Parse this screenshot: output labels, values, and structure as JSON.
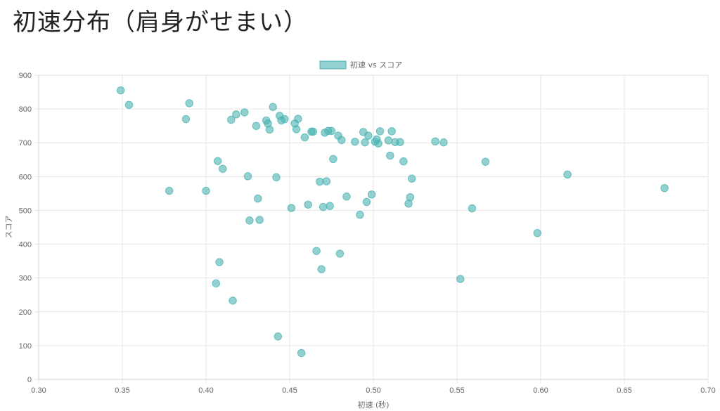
{
  "page": {
    "title": "初速分布（肩身がせまい）"
  },
  "chart_data": {
    "type": "scatter",
    "xlabel": "初速 (秒)",
    "ylabel": "スコア",
    "xlim": [
      0.3,
      0.7
    ],
    "ylim": [
      0,
      900
    ],
    "x_ticks": [
      "0.30",
      "0.35",
      "0.40",
      "0.45",
      "0.50",
      "0.55",
      "0.60",
      "0.65",
      "0.70"
    ],
    "y_ticks": [
      "0",
      "100",
      "200",
      "300",
      "400",
      "500",
      "600",
      "700",
      "800",
      "900"
    ],
    "grid": true,
    "legend_position": "top-center",
    "series": [
      {
        "name": "初速 vs スコア",
        "color": "#4bb3b3",
        "points": [
          [
            0.349,
            855
          ],
          [
            0.354,
            812
          ],
          [
            0.378,
            558
          ],
          [
            0.388,
            770
          ],
          [
            0.39,
            817
          ],
          [
            0.4,
            558
          ],
          [
            0.406,
            284
          ],
          [
            0.407,
            646
          ],
          [
            0.408,
            347
          ],
          [
            0.41,
            623
          ],
          [
            0.415,
            768
          ],
          [
            0.416,
            233
          ],
          [
            0.418,
            784
          ],
          [
            0.423,
            790
          ],
          [
            0.425,
            601
          ],
          [
            0.426,
            470
          ],
          [
            0.43,
            750
          ],
          [
            0.431,
            535
          ],
          [
            0.432,
            472
          ],
          [
            0.436,
            766
          ],
          [
            0.437,
            757
          ],
          [
            0.438,
            739
          ],
          [
            0.44,
            806
          ],
          [
            0.442,
            598
          ],
          [
            0.443,
            127
          ],
          [
            0.444,
            780
          ],
          [
            0.445,
            766
          ],
          [
            0.447,
            770
          ],
          [
            0.451,
            507
          ],
          [
            0.453,
            757
          ],
          [
            0.454,
            740
          ],
          [
            0.455,
            771
          ],
          [
            0.457,
            78
          ],
          [
            0.459,
            716
          ],
          [
            0.461,
            517
          ],
          [
            0.463,
            733
          ],
          [
            0.464,
            733
          ],
          [
            0.466,
            380
          ],
          [
            0.468,
            585
          ],
          [
            0.469,
            326
          ],
          [
            0.47,
            510
          ],
          [
            0.471,
            730
          ],
          [
            0.472,
            586
          ],
          [
            0.473,
            735
          ],
          [
            0.474,
            513
          ],
          [
            0.475,
            735
          ],
          [
            0.476,
            652
          ],
          [
            0.479,
            721
          ],
          [
            0.48,
            372
          ],
          [
            0.481,
            708
          ],
          [
            0.484,
            541
          ],
          [
            0.489,
            703
          ],
          [
            0.492,
            487
          ],
          [
            0.494,
            732
          ],
          [
            0.495,
            701
          ],
          [
            0.496,
            525
          ],
          [
            0.497,
            721
          ],
          [
            0.499,
            547
          ],
          [
            0.501,
            703
          ],
          [
            0.502,
            710
          ],
          [
            0.503,
            698
          ],
          [
            0.504,
            734
          ],
          [
            0.509,
            707
          ],
          [
            0.51,
            662
          ],
          [
            0.511,
            734
          ],
          [
            0.513,
            702
          ],
          [
            0.516,
            702
          ],
          [
            0.518,
            645
          ],
          [
            0.521,
            520
          ],
          [
            0.522,
            539
          ],
          [
            0.523,
            594
          ],
          [
            0.537,
            704
          ],
          [
            0.542,
            701
          ],
          [
            0.552,
            297
          ],
          [
            0.559,
            506
          ],
          [
            0.567,
            644
          ],
          [
            0.598,
            433
          ],
          [
            0.616,
            606
          ],
          [
            0.674,
            566
          ]
        ]
      }
    ]
  }
}
